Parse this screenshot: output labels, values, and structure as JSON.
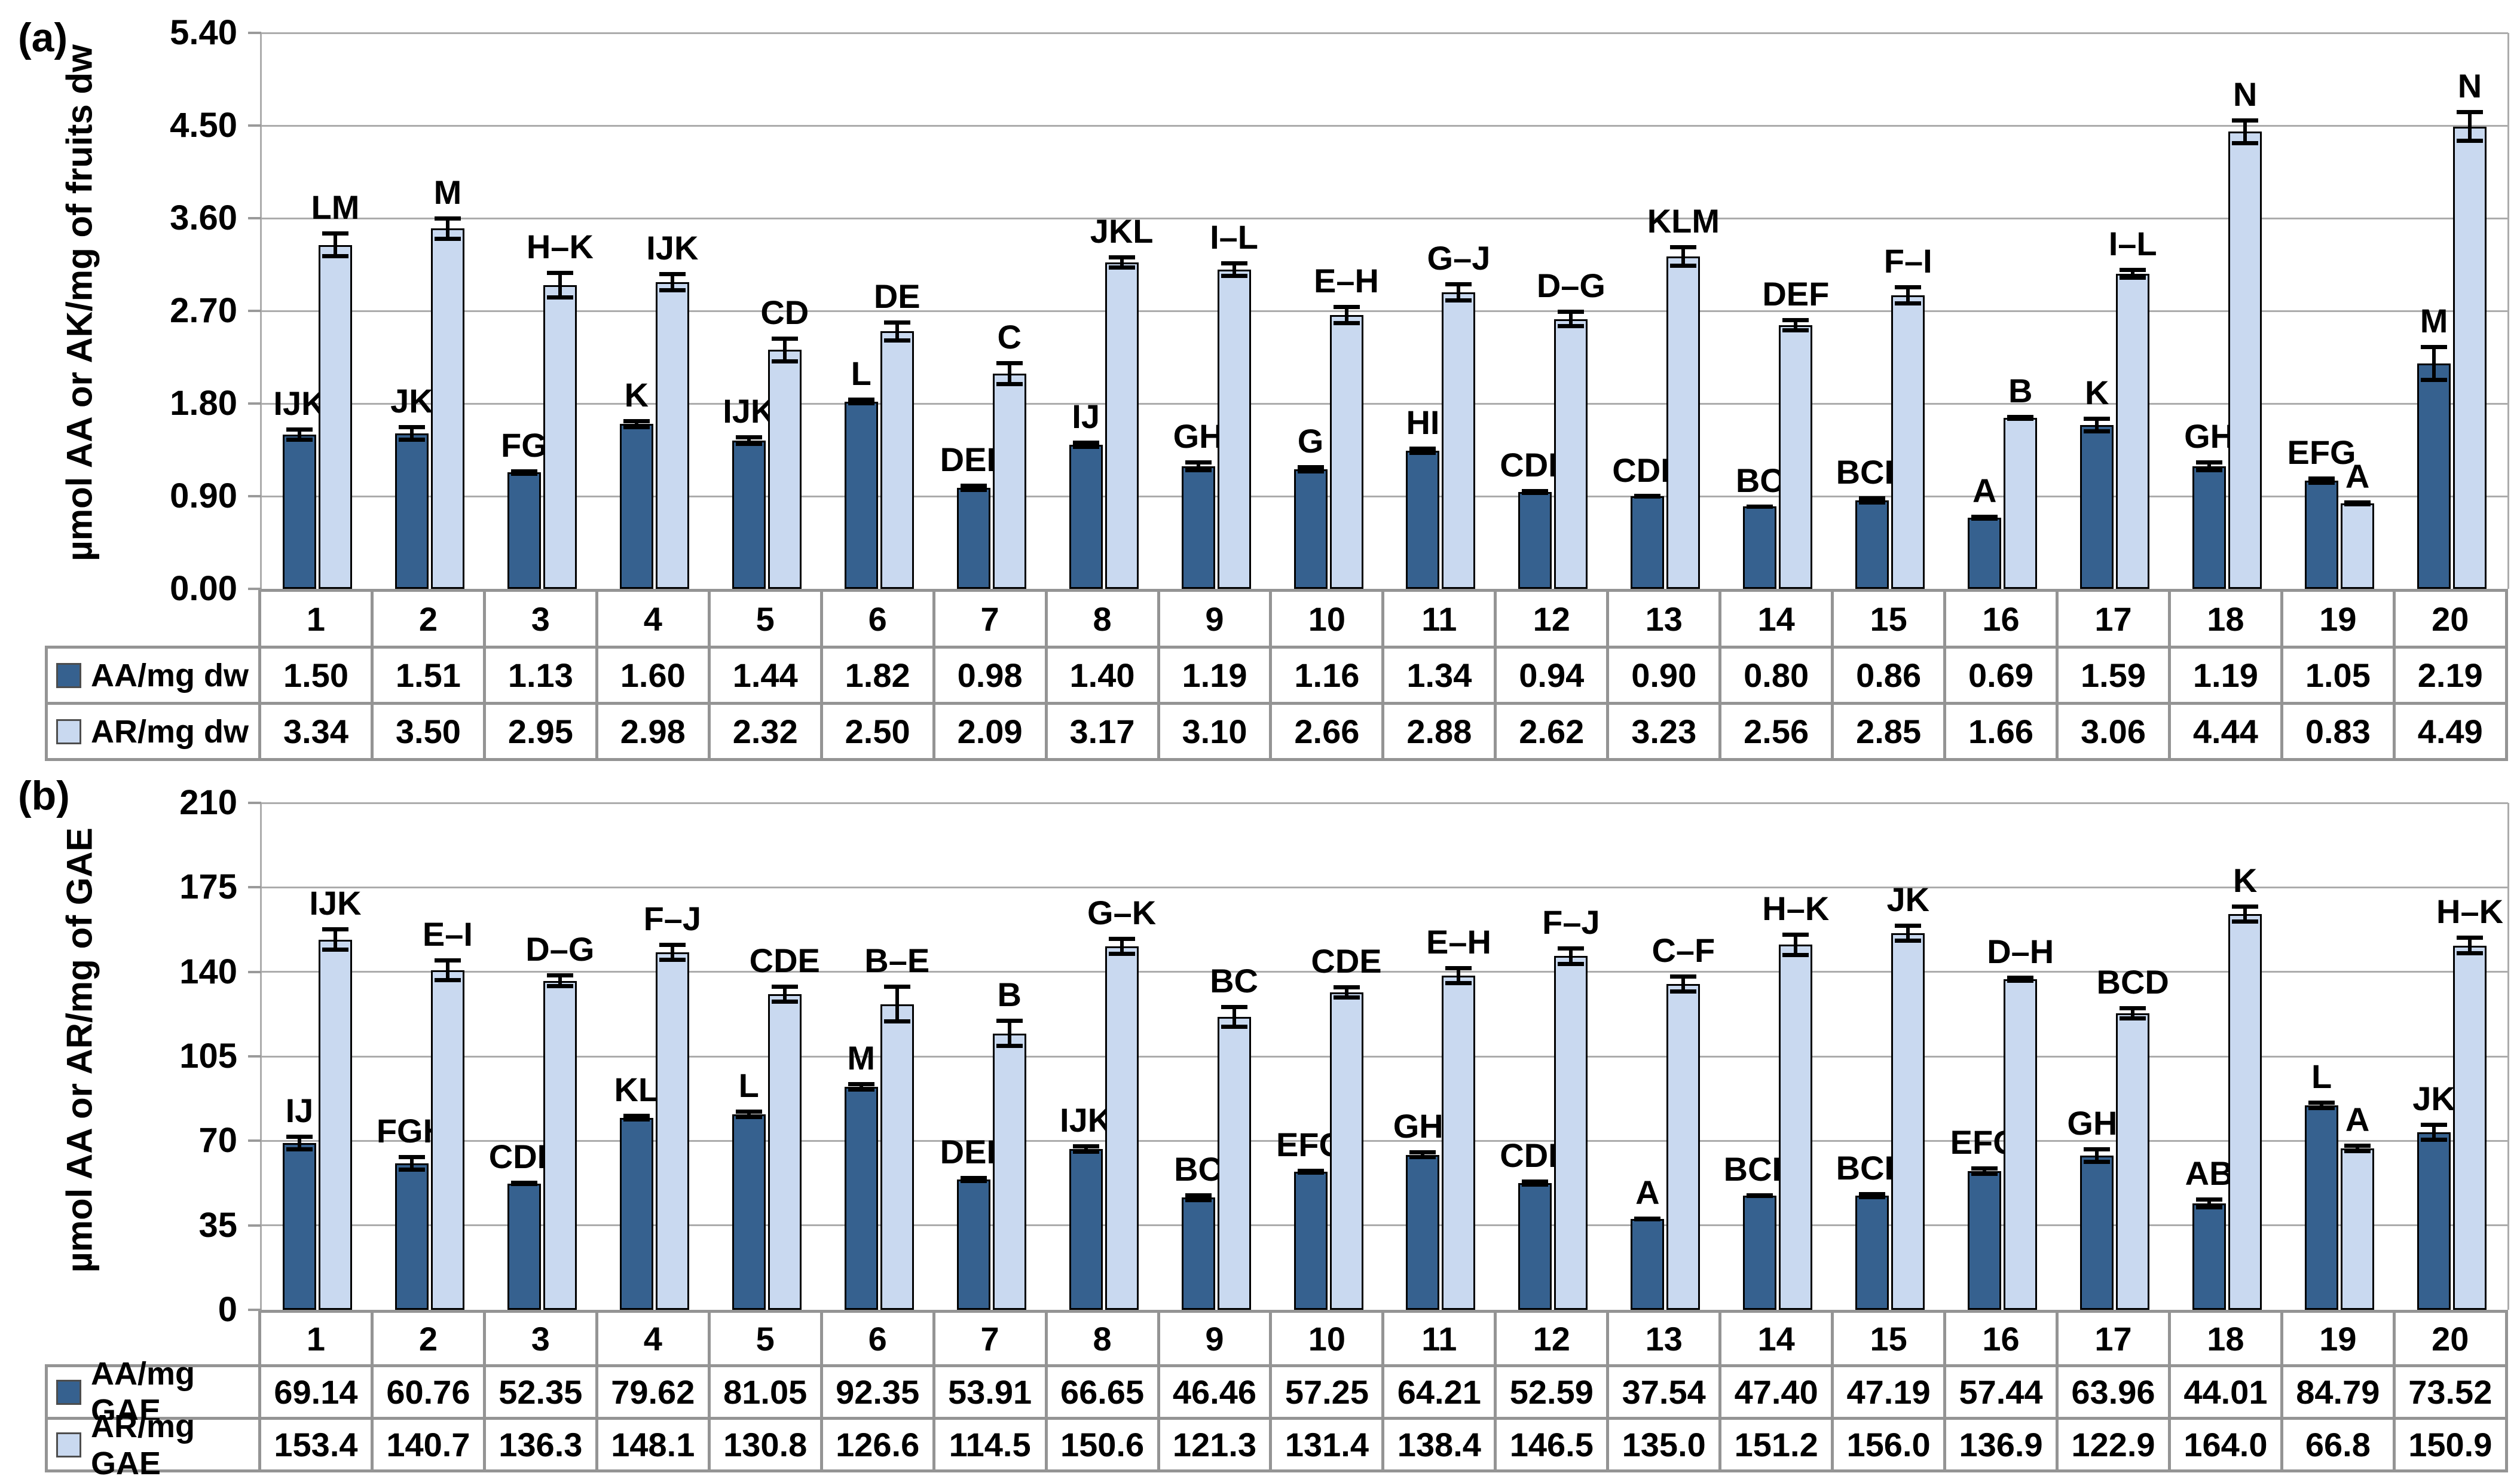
{
  "colors": {
    "series_dark_blue": "#36618F",
    "series_light_blue": "#C9D9F0",
    "bar_outline": "#000000",
    "gridline": "#ACACAC",
    "table_border": "#949494",
    "text": "#000000"
  },
  "chart_data": [
    {
      "id": "a",
      "type": "bar",
      "panel_label": "(a)",
      "title": "",
      "xlabel": "",
      "ylabel": "µmol AA or AK/mg of fruits dw",
      "ylim": [
        0,
        5.4
      ],
      "yticks": [
        "5.40",
        "4.50",
        "3.60",
        "2.70",
        "1.80",
        "0.90",
        "0.00"
      ],
      "grid": true,
      "legend_position": "table-left",
      "categories": [
        "1",
        "2",
        "3",
        "4",
        "5",
        "6",
        "7",
        "8",
        "9",
        "10",
        "11",
        "12",
        "13",
        "14",
        "15",
        "16",
        "17",
        "18",
        "19",
        "20"
      ],
      "series": [
        {
          "name": "AA/mg dw",
          "color": "#36618F",
          "values": [
            "1.50",
            "1.51",
            "1.13",
            "1.60",
            "1.44",
            "1.82",
            "0.98",
            "1.40",
            "1.19",
            "1.16",
            "1.34",
            "0.94",
            "0.90",
            "0.80",
            "0.86",
            "0.69",
            "1.59",
            "1.19",
            "1.05",
            "2.19"
          ],
          "errors": [
            0.07,
            0.08,
            0.03,
            0.05,
            0.05,
            0.04,
            0.04,
            0.04,
            0.06,
            0.04,
            0.04,
            0.03,
            0.02,
            0.02,
            0.04,
            0.03,
            0.08,
            0.06,
            0.04,
            0.18
          ],
          "letters": [
            "IJK",
            "JK",
            "FG",
            "K",
            "IJK",
            "L",
            "DEF",
            "IJ",
            "GH",
            "G",
            "HI",
            "CDE",
            "CDE",
            "BC",
            "BCD",
            "A",
            "K",
            "GH",
            "EFG",
            "M"
          ]
        },
        {
          "name": "AR/mg dw",
          "color": "#C9D9F0",
          "values": [
            "3.34",
            "3.50",
            "2.95",
            "2.98",
            "2.32",
            "2.50",
            "2.09",
            "3.17",
            "3.10",
            "2.66",
            "2.88",
            "2.62",
            "3.23",
            "2.56",
            "2.85",
            "1.66",
            "3.06",
            "4.44",
            "0.83",
            "4.49"
          ],
          "errors": [
            0.13,
            0.12,
            0.14,
            0.1,
            0.13,
            0.11,
            0.12,
            0.07,
            0.08,
            0.1,
            0.1,
            0.09,
            0.11,
            0.07,
            0.1,
            0.03,
            0.06,
            0.13,
            0.03,
            0.16
          ],
          "letters": [
            "LM",
            "M",
            "H–K",
            "IJK",
            "CD",
            "DE",
            "C",
            "JKL",
            "I–L",
            "E–H",
            "G–J",
            "D–G",
            "KLM",
            "DEF",
            "F–I",
            "B",
            "I–L",
            "N",
            "A",
            "N"
          ]
        }
      ]
    },
    {
      "id": "b",
      "type": "bar",
      "panel_label": "(b)",
      "title": "",
      "xlabel": "",
      "ylabel": "µmol AA or AR/mg of GAE",
      "ylim": [
        0,
        210
      ],
      "yticks": [
        "210",
        "175",
        "140",
        "105",
        "70",
        "35",
        "0"
      ],
      "grid": true,
      "legend_position": "table-left",
      "categories": [
        "1",
        "2",
        "3",
        "4",
        "5",
        "6",
        "7",
        "8",
        "9",
        "10",
        "11",
        "12",
        "13",
        "14",
        "15",
        "16",
        "17",
        "18",
        "19",
        "20"
      ],
      "series": [
        {
          "name": "AA/mg GAE",
          "color": "#36618F",
          "values": [
            "69.14",
            "60.76",
            "52.35",
            "79.62",
            "81.05",
            "92.35",
            "53.91",
            "66.65",
            "46.46",
            "57.25",
            "64.21",
            "52.59",
            "37.54",
            "47.40",
            "47.19",
            "57.44",
            "63.96",
            "44.01",
            "84.79",
            "73.52"
          ],
          "errors": [
            3.5,
            3.5,
            1.2,
            1.5,
            2.0,
            2.0,
            1.5,
            2.0,
            1.8,
            1.2,
            1.8,
            1.5,
            1.0,
            1.0,
            1.5,
            2.0,
            3.5,
            2.5,
            2.0,
            4.0
          ],
          "letters": [
            "IJ",
            "FGH",
            "CDE",
            "KL",
            "L",
            "M",
            "DEF",
            "IJK",
            "BC",
            "EFG",
            "GHI",
            "CDE",
            "A",
            "BCD",
            "BCD",
            "EFG",
            "GHI",
            "AB",
            "L",
            "JK"
          ]
        },
        {
          "name": "AR/mg GAE",
          "color": "#C9D9F0",
          "values": [
            "153.4",
            "140.7",
            "136.3",
            "148.1",
            "130.8",
            "126.6",
            "114.5",
            "150.6",
            "121.3",
            "131.4",
            "138.4",
            "146.5",
            "135.0",
            "151.2",
            "156.0",
            "136.9",
            "122.9",
            "164.0",
            "66.8",
            "150.9"
          ],
          "errors": [
            5,
            5,
            3,
            4,
            4,
            8,
            6,
            4,
            5,
            3,
            4,
            4,
            4,
            5,
            4,
            1.5,
            3,
            4,
            2,
            4
          ],
          "letters": [
            "IJK",
            "E–I",
            "D–G",
            "F–J",
            "CDE",
            "B–E",
            "B",
            "G–K",
            "BC",
            "CDE",
            "E–H",
            "F–J",
            "C–F",
            "H–K",
            "JK",
            "D–H",
            "BCD",
            "K",
            "A",
            "H–K"
          ]
        }
      ]
    }
  ]
}
